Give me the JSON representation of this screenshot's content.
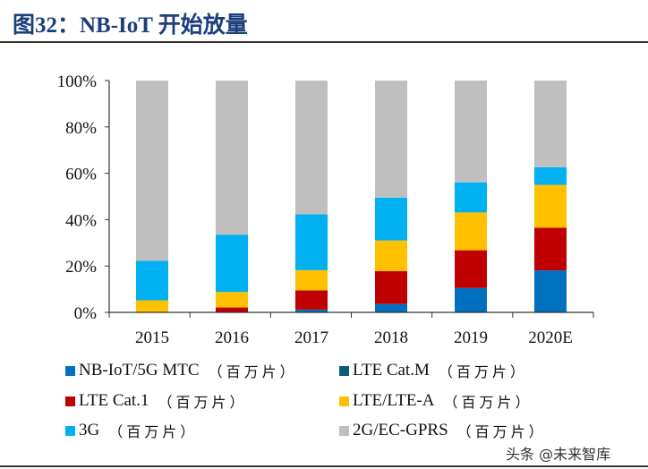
{
  "title": "图32：NB-IoT 开始放量",
  "watermark": "头条 @未来智库",
  "chart_data": {
    "type": "bar",
    "stacked": true,
    "categories": [
      "2015",
      "2016",
      "2017",
      "2018",
      "2019",
      "2020E"
    ],
    "ylim": [
      0,
      100
    ],
    "yticks": [
      "0%",
      "20%",
      "40%",
      "60%",
      "80%",
      "100%"
    ],
    "legend_position": "bottom",
    "grid": false,
    "unit": "（百万片）",
    "series": [
      {
        "name": "NB-IoT/5G MTC",
        "color": "#0070c0",
        "values": [
          0,
          0,
          1.2,
          3.6,
          10.5,
          18.1
        ]
      },
      {
        "name": "LTE Cat.M",
        "color": "#0b5e77",
        "values": [
          0,
          0,
          0,
          0,
          0,
          0
        ]
      },
      {
        "name": "LTE Cat.1",
        "color": "#c00000",
        "values": [
          0,
          2.1,
          8.3,
          14.2,
          16.3,
          18.4
        ]
      },
      {
        "name": "LTE/LTE-A",
        "color": "#ffc000",
        "values": [
          5.2,
          6.7,
          8.7,
          13.2,
          16.3,
          18.5
        ]
      },
      {
        "name": "3G",
        "color": "#00b0f0",
        "values": [
          17.0,
          24.7,
          24.1,
          18.5,
          13.0,
          7.6
        ]
      },
      {
        "name": "2G/EC-GPRS",
        "color": "#bfbfbf",
        "values": [
          77.8,
          66.5,
          57.7,
          50.5,
          43.9,
          37.4
        ]
      }
    ]
  }
}
